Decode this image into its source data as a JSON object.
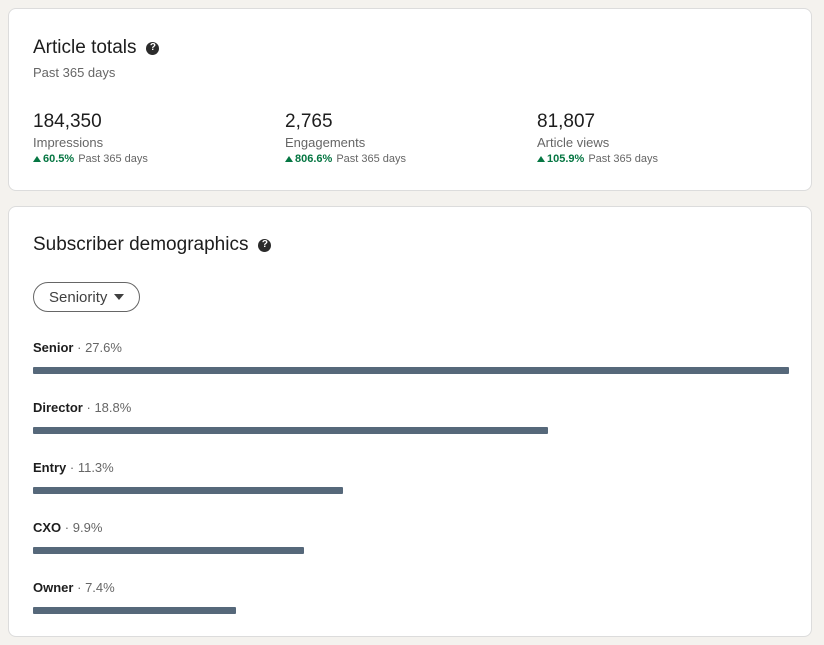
{
  "article_totals": {
    "title": "Article totals",
    "subtitle": "Past 365 days",
    "metrics": [
      {
        "value": "184,350",
        "label": "Impressions",
        "change": "60.5%",
        "period": "Past 365 days"
      },
      {
        "value": "2,765",
        "label": "Engagements",
        "change": "806.6%",
        "period": "Past 365 days"
      },
      {
        "value": "81,807",
        "label": "Article views",
        "change": "105.9%",
        "period": "Past 365 days"
      }
    ]
  },
  "subscriber_demographics": {
    "title": "Subscriber demographics",
    "filter_label": "Seniority",
    "separator": "·",
    "bars": [
      {
        "name": "Senior",
        "percent": "27.6%",
        "value": 27.6
      },
      {
        "name": "Director",
        "percent": "18.8%",
        "value": 18.8
      },
      {
        "name": "Entry",
        "percent": "11.3%",
        "value": 11.3
      },
      {
        "name": "CXO",
        "percent": "9.9%",
        "value": 9.9
      },
      {
        "name": "Owner",
        "percent": "7.4%",
        "value": 7.4
      }
    ]
  },
  "colors": {
    "positive": "#057642",
    "bar": "#56687a",
    "page_bg": "#f4f2ee"
  },
  "icons": [
    "help-icon",
    "trend-up-icon",
    "caret-down-icon"
  ]
}
